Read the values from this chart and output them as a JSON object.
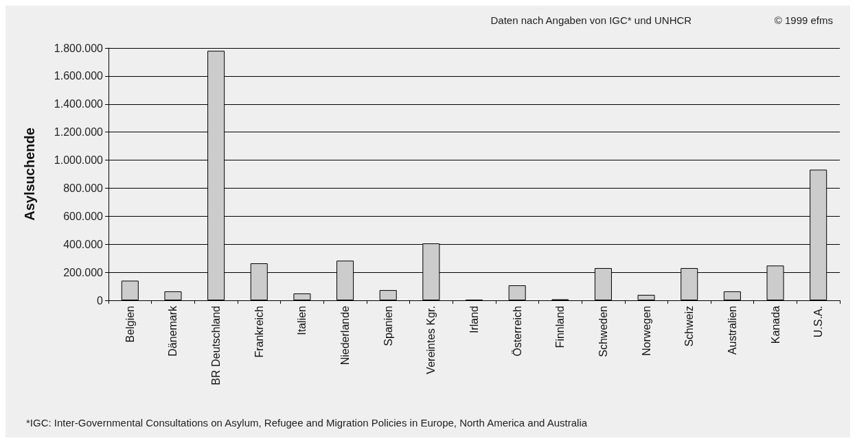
{
  "chart_data": {
    "type": "bar",
    "ylabel": "Asylsuchende",
    "categories": [
      "Belgien",
      "Dänemark",
      "BR Deutschland",
      "Frankreich",
      "Italien",
      "Niederlande",
      "Spanien",
      "Vereintes Kgr.",
      "Irland",
      "Österreich",
      "Finnland",
      "Schweden",
      "Norwegen",
      "Schweiz",
      "Australien",
      "Kanada",
      "U.S.A."
    ],
    "values": [
      140000,
      64000,
      1780000,
      264000,
      49000,
      283000,
      73000,
      406000,
      5000,
      107000,
      7000,
      230000,
      39000,
      230000,
      64000,
      248000,
      932000
    ],
    "color": "#cccccc",
    "ylim": [
      0,
      1800000
    ],
    "yticks": [
      0,
      {
        "value": 200000,
        "label": "200.000"
      },
      {
        "value": 400000,
        "label": "400.000"
      },
      {
        "value": 600000,
        "label": "600.000"
      },
      {
        "value": 800000,
        "label": "800.000"
      },
      {
        "value": 1000000,
        "label": "1.000.000"
      },
      {
        "value": 1200000,
        "label": "1.200.000"
      },
      {
        "value": 1400000,
        "label": "1.400.000"
      },
      {
        "value": 1600000,
        "label": "1.600.000"
      },
      {
        "value": 1800000,
        "label": "1.800.000"
      }
    ],
    "grid": "y",
    "annotations": [
      "Daten nach Angaben von IGC* und UNHCR",
      "© 1999 efms",
      "*IGC: Inter-Governmental Consultations on Asylum, Refugee and Migration Policies in Europe, North America and Australia"
    ]
  }
}
